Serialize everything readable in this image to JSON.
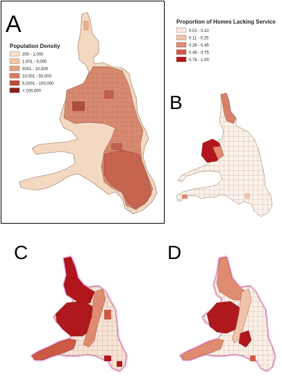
{
  "panels": {
    "A": "A",
    "B": "B",
    "C": "C",
    "D": "D"
  },
  "legends": {
    "population_density": {
      "title": "Population Density",
      "items": [
        {
          "label": "200 - 1,000",
          "color": "#f6e2cf"
        },
        {
          "label": "1,001 - 5,000",
          "color": "#eec6a4"
        },
        {
          "label": "5001 - 10,000",
          "color": "#e3a283"
        },
        {
          "label": "10,001 - 50,000",
          "color": "#d47a64"
        },
        {
          "label": "5,0001 - 100,000",
          "color": "#b94a3e"
        },
        {
          "label": "> 100,000",
          "color": "#8e2219"
        }
      ]
    },
    "homes_lacking_service": {
      "title": "Proportion of Homes Lacking Service",
      "items": [
        {
          "label": "0.01 - 0.10",
          "color": "#f9e8dc"
        },
        {
          "label": "0.11 - 0.25",
          "color": "#f0c3ab"
        },
        {
          "label": "0.26 - 0.45",
          "color": "#de8b70"
        },
        {
          "label": "0.46 - 0.75",
          "color": "#cd5a44"
        },
        {
          "label": "0.76 - 1.00",
          "color": "#b0161b"
        }
      ]
    }
  },
  "colors": {
    "boundary": "#7a5a4a",
    "panel_border": "#000000",
    "halo": "#f3a6e4"
  }
}
